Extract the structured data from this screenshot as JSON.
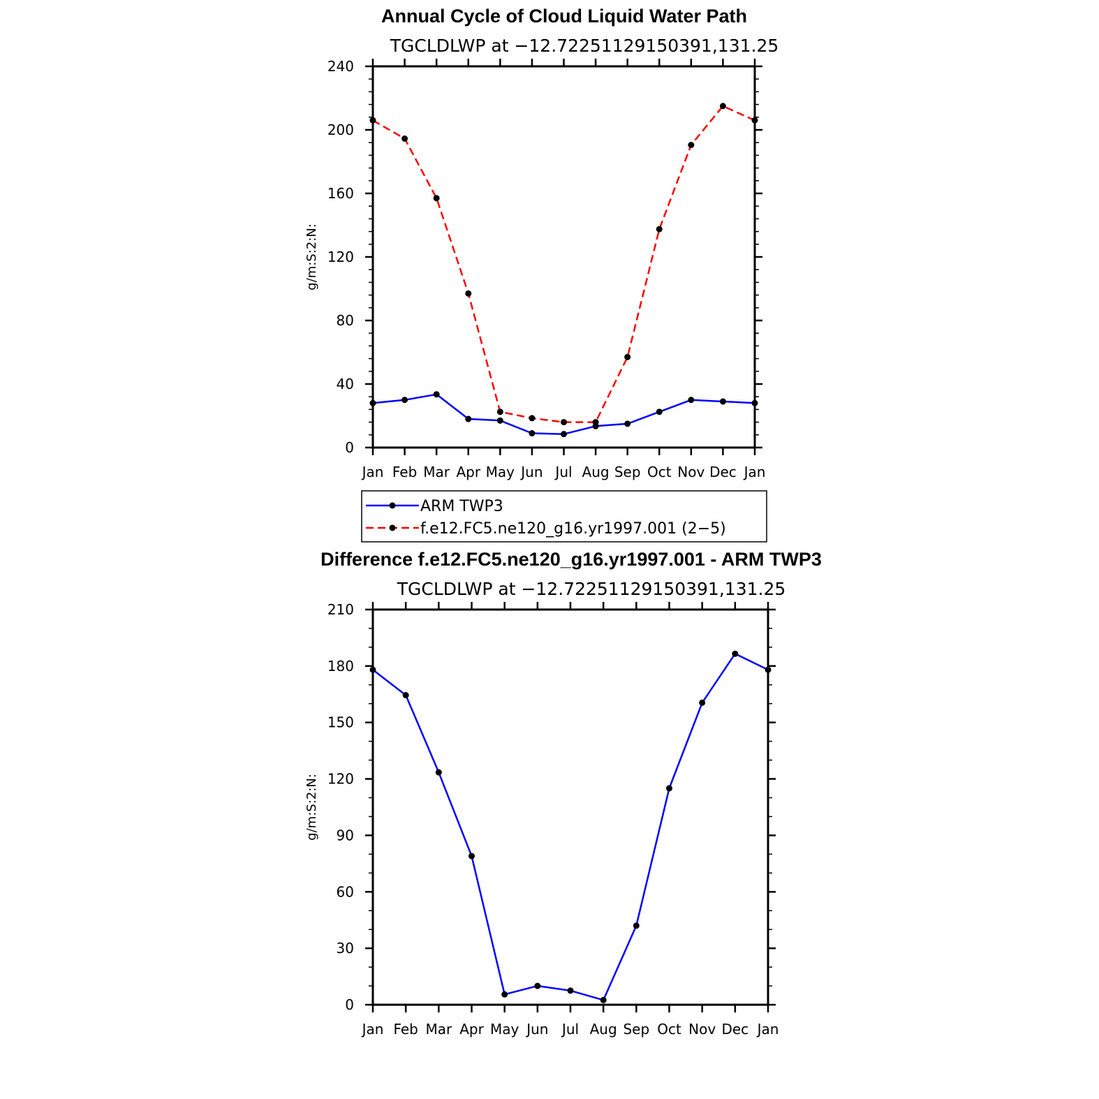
{
  "chart_data": [
    {
      "type": "line",
      "title": "Annual Cycle of Cloud Liquid Water Path",
      "subtitle": "TGCLDLWP at −12.72251129150391,131.25",
      "xlabel": "",
      "ylabel": "g/m:S:2:N:",
      "categories": [
        "Jan",
        "Feb",
        "Mar",
        "Apr",
        "May",
        "Jun",
        "Jul",
        "Aug",
        "Sep",
        "Oct",
        "Nov",
        "Dec",
        "Jan"
      ],
      "ylim": [
        0,
        240
      ],
      "yticks": [
        0,
        40,
        80,
        120,
        160,
        200,
        240
      ],
      "grid": false,
      "legend_position": "bottom",
      "series": [
        {
          "name": "ARM TWP3",
          "color": "#0000ff",
          "dash": "solid",
          "values": [
            28,
            30,
            33.5,
            18,
            17,
            9,
            8.5,
            13.5,
            15,
            22.5,
            30,
            29,
            28
          ]
        },
        {
          "name": "f.e12.FC5.ne120_g16.yr1997.001 (2−5)",
          "color": "#ff0000",
          "dash": "dashed",
          "values": [
            206,
            194.5,
            157,
            97,
            22.5,
            18.5,
            16,
            16,
            57,
            137.5,
            190.5,
            215,
            206
          ]
        }
      ]
    },
    {
      "type": "line",
      "title": "Difference f.e12.FC5.ne120_g16.yr1997.001 - ARM TWP3",
      "subtitle": "TGCLDLWP at −12.72251129150391,131.25",
      "xlabel": "",
      "ylabel": "g/m:S:2:N:",
      "categories": [
        "Jan",
        "Feb",
        "Mar",
        "Apr",
        "May",
        "Jun",
        "Jul",
        "Aug",
        "Sep",
        "Oct",
        "Nov",
        "Dec",
        "Jan"
      ],
      "ylim": [
        0,
        210
      ],
      "yticks": [
        0,
        30,
        60,
        90,
        120,
        150,
        180,
        210
      ],
      "grid": false,
      "series": [
        {
          "color": "#0000ff",
          "dash": "solid",
          "values": [
            178,
            164.5,
            123.5,
            79,
            5.5,
            10,
            7.5,
            2.5,
            42,
            115,
            160.5,
            186.5,
            178
          ]
        }
      ]
    }
  ],
  "marker_color": "#000000"
}
